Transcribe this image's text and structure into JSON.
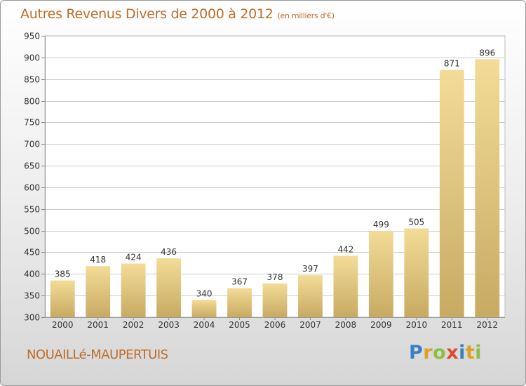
{
  "header": {
    "title": "Autres Revenus Divers de 2000 à 2012",
    "unit": "(en milliers d'€)"
  },
  "footer": {
    "commune": "NOUAILLé-MAUPERTUIS",
    "logo_letters": [
      "P",
      "r",
      "o",
      "x",
      "i",
      "t",
      "i"
    ],
    "logo_colors": [
      "#3a7fc4",
      "#e0a020",
      "#8ac040",
      "#e04a2a",
      "#3a7fc4",
      "#e0a020",
      "#8ac040"
    ]
  },
  "colors": {
    "bar_light": "#f3dc97",
    "bar_dark": "#c8aa62",
    "grid": "#cccccc",
    "accent": "#bf6d2a"
  },
  "chart_data": {
    "type": "bar",
    "categories": [
      "2000",
      "2001",
      "2002",
      "2003",
      "2004",
      "2005",
      "2006",
      "2007",
      "2008",
      "2009",
      "2010",
      "2011",
      "2012"
    ],
    "values": [
      385,
      418,
      424,
      436,
      340,
      367,
      378,
      397,
      442,
      499,
      505,
      871,
      896
    ],
    "title": "Autres Revenus Divers de 2000 à 2012",
    "xlabel": "",
    "ylabel": "",
    "ylim": [
      300,
      950
    ],
    "yticks": [
      300,
      350,
      400,
      450,
      500,
      550,
      600,
      650,
      700,
      750,
      800,
      850,
      900,
      950
    ],
    "grid": true
  }
}
